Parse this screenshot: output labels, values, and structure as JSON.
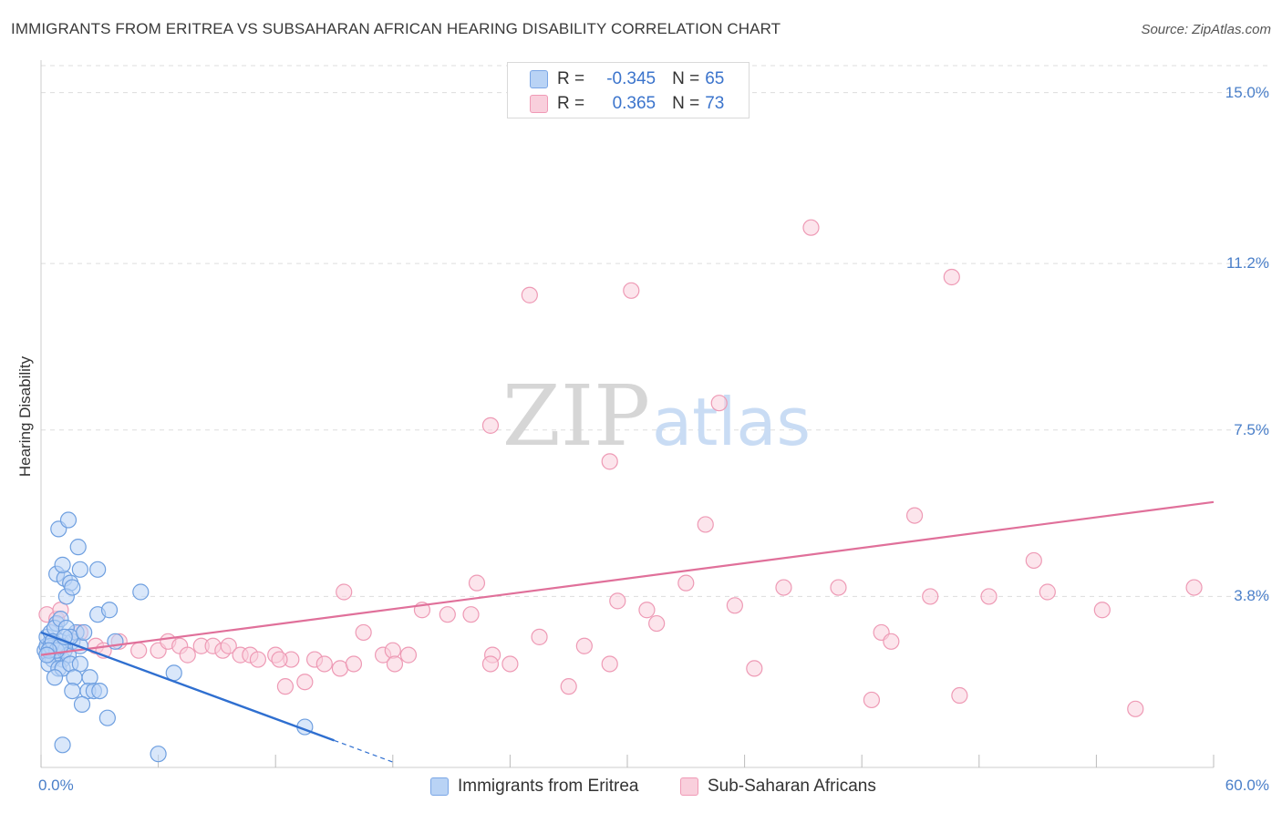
{
  "header": {
    "title": "IMMIGRANTS FROM ERITREA VS SUBSAHARAN AFRICAN HEARING DISABILITY CORRELATION CHART",
    "source": "Source: ZipAtlas.com"
  },
  "watermark": {
    "zip": "ZIP",
    "atlas": "atlas"
  },
  "legend": {
    "rows": [
      {
        "r_label": "R =",
        "r_value": "-0.345",
        "n_label": "N =",
        "n_value": "65"
      },
      {
        "r_label": "R =",
        "r_value": "0.365",
        "n_label": "N =",
        "n_value": "73"
      }
    ]
  },
  "bottom_legend": {
    "blue_label": "Immigrants from Eritrea",
    "pink_label": "Sub-Saharan Africans"
  },
  "colors": {
    "blue_fill": "#b9d3f5",
    "blue_stroke": "#6e9fe0",
    "blue_line": "#2f6fd0",
    "pink_fill": "#f9cfdc",
    "pink_stroke": "#ee9ab5",
    "pink_line": "#e0709a",
    "grid": "#dddddd",
    "tick_text": "#4a7fc9"
  },
  "chart_data": {
    "type": "scatter",
    "title": "IMMIGRANTS FROM ERITREA VS SUBSAHARAN AFRICAN HEARING DISABILITY CORRELATION CHART",
    "xlabel": "",
    "ylabel": "Hearing Disability",
    "xlim": [
      0,
      60
    ],
    "ylim": [
      0,
      15.6
    ],
    "x_tick_labels": [
      "0.0%",
      "60.0%"
    ],
    "y_ticks": [
      {
        "value": 3.8,
        "label": "3.8%"
      },
      {
        "value": 7.5,
        "label": "7.5%"
      },
      {
        "value": 11.2,
        "label": "11.2%"
      },
      {
        "value": 15.0,
        "label": "15.0%"
      }
    ],
    "series": [
      {
        "name": "Immigrants from Eritrea",
        "color": "blue",
        "r": -0.345,
        "n": 65,
        "trend": {
          "x0": 0,
          "y0": 3.0,
          "x1": 15,
          "y1": 0.6,
          "dash_x1": 18
        },
        "points": [
          [
            0.2,
            2.6
          ],
          [
            0.3,
            2.7
          ],
          [
            0.4,
            2.5
          ],
          [
            0.5,
            2.8
          ],
          [
            0.6,
            2.6
          ],
          [
            0.7,
            2.7
          ],
          [
            0.8,
            2.5
          ],
          [
            0.9,
            2.6
          ],
          [
            1.0,
            2.8
          ],
          [
            1.1,
            2.4
          ],
          [
            0.3,
            2.9
          ],
          [
            0.5,
            3.0
          ],
          [
            0.6,
            2.4
          ],
          [
            0.8,
            3.2
          ],
          [
            0.9,
            2.7
          ],
          [
            1.2,
            2.6
          ],
          [
            1.4,
            2.5
          ],
          [
            1.6,
            2.8
          ],
          [
            1.8,
            3.0
          ],
          [
            2.0,
            2.7
          ],
          [
            0.7,
            3.1
          ],
          [
            1.0,
            3.3
          ],
          [
            1.3,
            3.1
          ],
          [
            1.5,
            2.9
          ],
          [
            0.4,
            2.3
          ],
          [
            0.9,
            2.2
          ],
          [
            1.1,
            2.2
          ],
          [
            1.5,
            2.3
          ],
          [
            2.0,
            2.3
          ],
          [
            0.7,
            2.0
          ],
          [
            1.7,
            2.0
          ],
          [
            2.5,
            2.0
          ],
          [
            1.6,
            1.7
          ],
          [
            2.4,
            1.7
          ],
          [
            2.7,
            1.7
          ],
          [
            3.0,
            1.7
          ],
          [
            2.1,
            1.4
          ],
          [
            3.4,
            1.1
          ],
          [
            0.8,
            4.3
          ],
          [
            1.2,
            4.2
          ],
          [
            1.5,
            4.1
          ],
          [
            2.0,
            4.4
          ],
          [
            2.9,
            4.4
          ],
          [
            1.1,
            4.5
          ],
          [
            1.9,
            4.9
          ],
          [
            1.3,
            3.8
          ],
          [
            1.6,
            4.0
          ],
          [
            0.9,
            5.3
          ],
          [
            1.4,
            5.5
          ],
          [
            2.9,
            3.4
          ],
          [
            3.5,
            3.5
          ],
          [
            5.1,
            3.9
          ],
          [
            6.8,
            2.1
          ],
          [
            13.5,
            0.9
          ],
          [
            1.1,
            0.5
          ],
          [
            6.0,
            0.3
          ],
          [
            0.5,
            2.7
          ],
          [
            0.6,
            2.8
          ],
          [
            0.8,
            2.6
          ],
          [
            1.0,
            2.7
          ],
          [
            1.2,
            2.9
          ],
          [
            0.4,
            2.6
          ],
          [
            0.3,
            2.5
          ],
          [
            2.2,
            3.0
          ],
          [
            3.8,
            2.8
          ]
        ]
      },
      {
        "name": "Sub-Saharan Africans",
        "color": "pink",
        "r": 0.365,
        "n": 73,
        "trend": {
          "x0": 0,
          "y0": 2.5,
          "x1": 60,
          "y1": 5.9
        },
        "points": [
          [
            0.3,
            3.4
          ],
          [
            0.8,
            3.3
          ],
          [
            1.0,
            3.5
          ],
          [
            2.0,
            3.0
          ],
          [
            2.8,
            2.7
          ],
          [
            3.2,
            2.6
          ],
          [
            4.0,
            2.8
          ],
          [
            5.0,
            2.6
          ],
          [
            6.0,
            2.6
          ],
          [
            6.5,
            2.8
          ],
          [
            7.1,
            2.7
          ],
          [
            7.5,
            2.5
          ],
          [
            8.2,
            2.7
          ],
          [
            8.8,
            2.7
          ],
          [
            9.3,
            2.6
          ],
          [
            9.6,
            2.7
          ],
          [
            10.2,
            2.5
          ],
          [
            10.7,
            2.5
          ],
          [
            11.1,
            2.4
          ],
          [
            12.0,
            2.5
          ],
          [
            12.5,
            1.8
          ],
          [
            12.8,
            2.4
          ],
          [
            13.5,
            1.9
          ],
          [
            14.0,
            2.4
          ],
          [
            14.5,
            2.3
          ],
          [
            15.3,
            2.2
          ],
          [
            16.0,
            2.3
          ],
          [
            16.5,
            3.0
          ],
          [
            17.5,
            2.5
          ],
          [
            18.0,
            2.6
          ],
          [
            18.8,
            2.5
          ],
          [
            19.5,
            3.5
          ],
          [
            20.8,
            3.4
          ],
          [
            22.0,
            3.4
          ],
          [
            23.1,
            2.5
          ],
          [
            24.0,
            2.3
          ],
          [
            25.5,
            2.9
          ],
          [
            27.0,
            1.8
          ],
          [
            27.8,
            2.7
          ],
          [
            29.1,
            2.3
          ],
          [
            29.5,
            3.7
          ],
          [
            31.0,
            3.5
          ],
          [
            31.5,
            3.2
          ],
          [
            33.0,
            4.1
          ],
          [
            34.0,
            5.4
          ],
          [
            35.5,
            3.6
          ],
          [
            36.5,
            2.2
          ],
          [
            38.0,
            4.0
          ],
          [
            40.8,
            4.0
          ],
          [
            42.5,
            1.5
          ],
          [
            43.0,
            3.0
          ],
          [
            43.5,
            2.8
          ],
          [
            45.5,
            3.8
          ],
          [
            47.0,
            1.6
          ],
          [
            48.5,
            3.8
          ],
          [
            50.8,
            4.6
          ],
          [
            51.5,
            3.9
          ],
          [
            54.3,
            3.5
          ],
          [
            56.0,
            1.3
          ],
          [
            59.0,
            4.0
          ],
          [
            15.5,
            3.9
          ],
          [
            23.0,
            2.3
          ],
          [
            12.2,
            2.4
          ],
          [
            18.1,
            2.3
          ],
          [
            25.0,
            10.5
          ],
          [
            30.2,
            10.6
          ],
          [
            39.4,
            12.0
          ],
          [
            46.6,
            10.9
          ],
          [
            34.7,
            8.1
          ],
          [
            23.0,
            7.6
          ],
          [
            29.1,
            6.8
          ],
          [
            44.7,
            5.6
          ],
          [
            22.3,
            4.1
          ]
        ]
      }
    ]
  }
}
